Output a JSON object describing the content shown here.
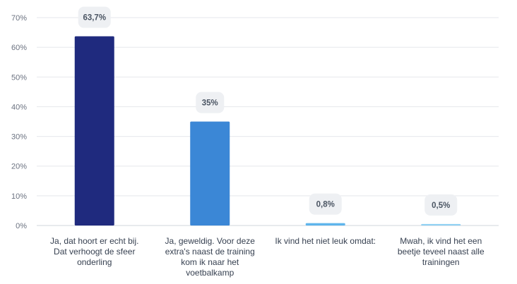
{
  "chart_data": {
    "type": "bar",
    "categories": [
      [
        "Ja, dat hoort er echt bij.",
        "Dat verhoogt de sfeer",
        "onderling"
      ],
      [
        "Ja, geweldig. Voor deze",
        "extra's naast de training",
        "kom ik naar het",
        "voetbalkamp"
      ],
      [
        "Ik vind het niet leuk omdat:"
      ],
      [
        "Mwah, ik vind het een",
        "beetje teveel naast alle",
        "trainingen"
      ]
    ],
    "values": [
      63.7,
      35,
      0.8,
      0.5
    ],
    "data_labels": [
      "63,7%",
      "35%",
      "0,8%",
      "0,5%"
    ],
    "bar_colors": [
      "#1f2a7e",
      "#3b87d6",
      "#5fb5ec",
      "#8fd0f2"
    ],
    "yticks": [
      0,
      10,
      20,
      30,
      40,
      50,
      60,
      70
    ],
    "ytick_labels": [
      "0%",
      "10%",
      "20%",
      "30%",
      "40%",
      "50%",
      "60%",
      "70%"
    ],
    "ylim": [
      0,
      70
    ],
    "grid": true,
    "title": "",
    "xlabel": "",
    "ylabel": ""
  }
}
